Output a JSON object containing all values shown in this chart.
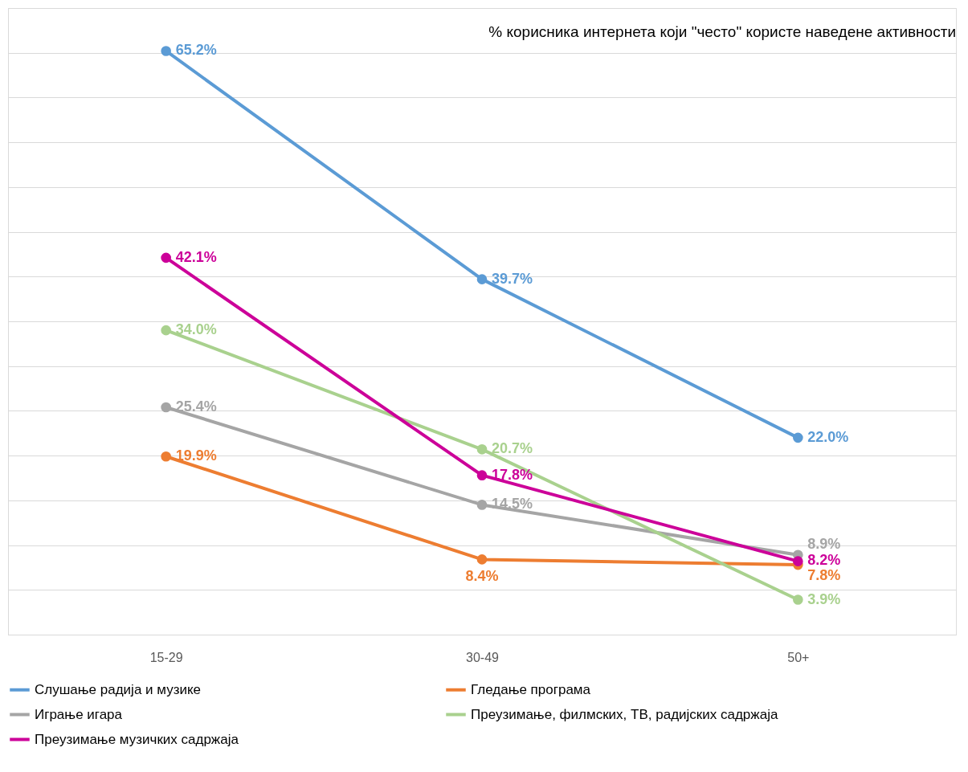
{
  "chart_data": {
    "type": "line",
    "title": "% корисника интернета који \"често\" користе наведене активности",
    "categories": [
      "15-29",
      "30-49",
      "50+"
    ],
    "series": [
      {
        "name": "Слушање радија и музике",
        "color": "#5b9bd5",
        "values": [
          65.2,
          39.7,
          22.0
        ],
        "value_labels": [
          "65.2%",
          "39.7%",
          "22.0%"
        ]
      },
      {
        "name": "Гледање програма",
        "color": "#ed7d31",
        "values": [
          19.9,
          8.4,
          7.8
        ],
        "value_labels": [
          "19.9%",
          "8.4%",
          "7.8%"
        ]
      },
      {
        "name": "Играње игара",
        "color": "#a5a5a5",
        "values": [
          25.4,
          14.5,
          8.9
        ],
        "value_labels": [
          "25.4%",
          "14.5%",
          "8.9%"
        ]
      },
      {
        "name": "Преузимање, филмских, ТВ, радијских садржаја",
        "color": "#a9d18e",
        "values": [
          34.0,
          20.7,
          3.9
        ],
        "value_labels": [
          "34.0%",
          "20.7%",
          "3.9%"
        ]
      },
      {
        "name": "Преузимање музичких садржаја",
        "color": "#cc0099",
        "values": [
          42.1,
          17.8,
          8.2
        ],
        "value_labels": [
          "42.1%",
          "17.8%",
          "8.2%"
        ]
      }
    ],
    "tick_labels": "x",
    "grid": "y",
    "legend": "bottom",
    "marker": "circle",
    "line_style": "solid"
  }
}
